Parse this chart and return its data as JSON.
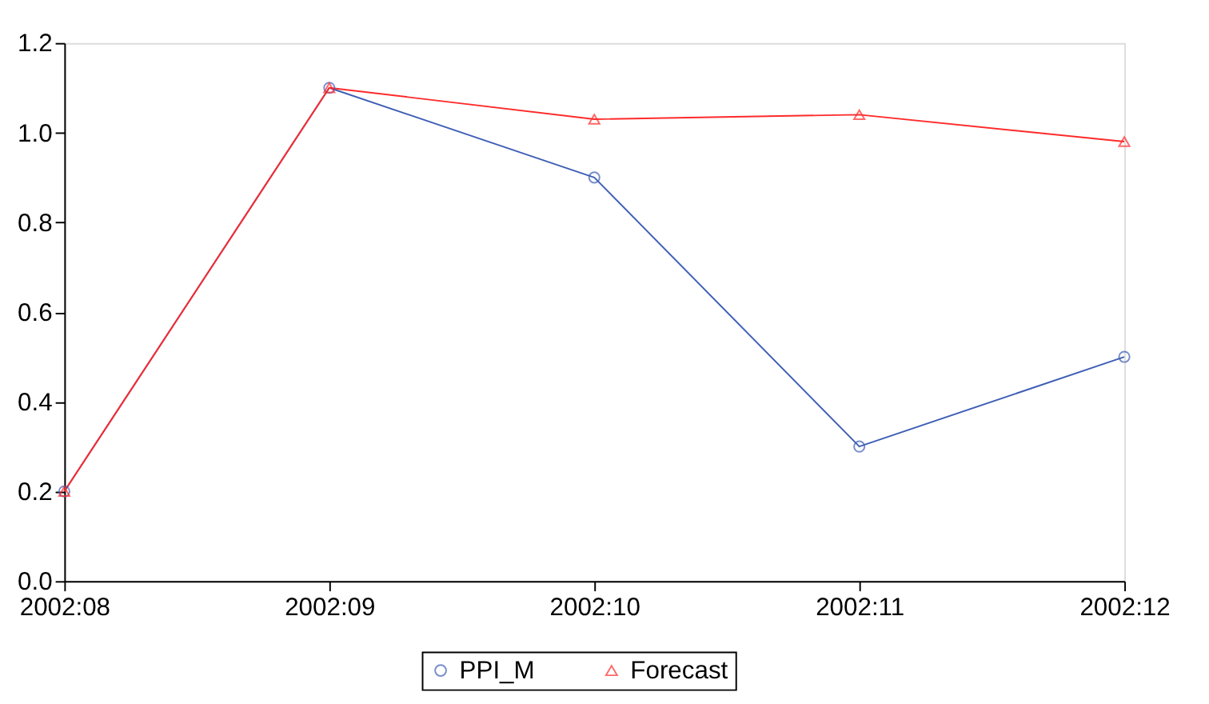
{
  "chart_data": {
    "type": "line",
    "categories": [
      "2002:08",
      "2002:09",
      "2002:10",
      "2002:11",
      "2002:12"
    ],
    "series": [
      {
        "name": "PPI_M",
        "color": "#3f5fb5",
        "marker": "circle",
        "values": [
          0.2,
          1.1,
          0.9,
          0.3,
          0.5
        ]
      },
      {
        "name": "Forecast",
        "color": "#ff2a2a",
        "marker": "triangle",
        "values": [
          0.2,
          1.1,
          1.03,
          1.04,
          0.98
        ]
      }
    ],
    "ylim": [
      0,
      1.2
    ],
    "yticks": [
      {
        "value": 0,
        "label": "0.0"
      },
      {
        "value": 0.2,
        "label": "0.2"
      },
      {
        "value": 0.4,
        "label": "0.4"
      },
      {
        "value": 0.6,
        "label": "0.6"
      },
      {
        "value": 0.8,
        "label": "0.8"
      },
      {
        "value": 1.0,
        "label": "1.0"
      },
      {
        "value": 1.2,
        "label": "1.2"
      }
    ],
    "grid": false,
    "legend": "bottom",
    "line_style": "solid"
  }
}
